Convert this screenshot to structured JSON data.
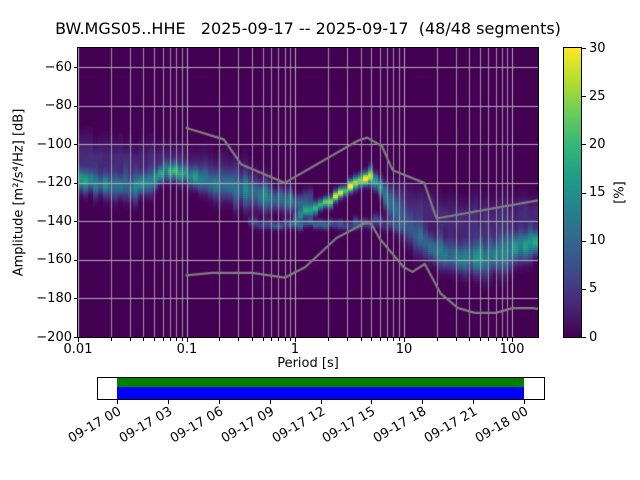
{
  "chart_data": {
    "type": "heatmap",
    "title": "BW.MGS05..HHE   2025-09-17 -- 2025-09-17  (48/48 segments)",
    "station": "BW.MGS05..HHE",
    "date_range": "2025-09-17 -- 2025-09-17",
    "segments": "48/48 segments",
    "xlabel": "Period [s]",
    "ylabel": "Amplitude [m²/s⁴/Hz] [dB]",
    "xscale": "log",
    "xlim": [
      0.01,
      172
    ],
    "ylim": [
      -200,
      -50
    ],
    "grid": true,
    "xticks": [
      {
        "value": 0.01,
        "label": "0.01"
      },
      {
        "value": 0.1,
        "label": "0.1"
      },
      {
        "value": 1,
        "label": "1"
      },
      {
        "value": 10,
        "label": "10"
      },
      {
        "value": 100,
        "label": "100"
      }
    ],
    "yticks": [
      {
        "value": -60,
        "label": "−60"
      },
      {
        "value": -80,
        "label": "−80"
      },
      {
        "value": -100,
        "label": "−100"
      },
      {
        "value": -120,
        "label": "−120"
      },
      {
        "value": -140,
        "label": "−140"
      },
      {
        "value": -160,
        "label": "−160"
      },
      {
        "value": -180,
        "label": "−180"
      },
      {
        "value": -200,
        "label": "−200"
      }
    ],
    "colorbar": {
      "label": "[%]",
      "min": 0,
      "max": 30,
      "tick_values": [
        0,
        5,
        10,
        15,
        20,
        25,
        30
      ],
      "colormap": "viridis"
    },
    "colors": {
      "background_zero": "#440154",
      "grid": "#b5b5b5",
      "noise_model_line": "#7f7f7f"
    },
    "noise_models": {
      "high_noise_model": [
        [
          0.1,
          -91.5
        ],
        [
          0.22,
          -97.4
        ],
        [
          0.32,
          -110.5
        ],
        [
          0.8,
          -120.0
        ],
        [
          3.8,
          -98.0
        ],
        [
          4.6,
          -96.5
        ],
        [
          6.3,
          -101.0
        ],
        [
          7.9,
          -113.5
        ],
        [
          15.4,
          -120.0
        ],
        [
          20.0,
          -138.5
        ],
        [
          354.8,
          -126.0
        ]
      ],
      "low_noise_model": [
        [
          0.1,
          -168.0
        ],
        [
          0.17,
          -166.7
        ],
        [
          0.4,
          -166.7
        ],
        [
          0.8,
          -169.2
        ],
        [
          1.24,
          -163.7
        ],
        [
          2.4,
          -148.6
        ],
        [
          4.3,
          -141.1
        ],
        [
          5.0,
          -141.1
        ],
        [
          6.0,
          -149.0
        ],
        [
          10.0,
          -163.8
        ],
        [
          12.0,
          -166.2
        ],
        [
          15.6,
          -162.1
        ],
        [
          21.9,
          -177.5
        ],
        [
          31.6,
          -185.0
        ],
        [
          45.0,
          -187.5
        ],
        [
          70.0,
          -187.5
        ],
        [
          101.0,
          -185.0
        ],
        [
          154.0,
          -185.0
        ],
        [
          328.0,
          -187.5
        ]
      ]
    },
    "probability_bands": [
      {
        "name": "primary-high-frequency-band",
        "points": [
          [
            0.0105,
            -118.5,
            16,
            3.2
          ],
          [
            0.014,
            -119.5,
            13,
            3.8
          ],
          [
            0.02,
            -120.5,
            12,
            4.2
          ],
          [
            0.03,
            -122,
            12,
            4.4
          ],
          [
            0.045,
            -119.5,
            13,
            3.8
          ],
          [
            0.06,
            -115.5,
            15,
            3.2
          ],
          [
            0.075,
            -113,
            17,
            2.8
          ],
          [
            0.095,
            -115,
            14,
            3.0
          ],
          [
            0.13,
            -118,
            12,
            4.0
          ],
          [
            0.2,
            -121,
            10,
            5.2
          ],
          [
            0.3,
            -123.5,
            10,
            5.4
          ],
          [
            0.45,
            -126.5,
            11,
            4.8
          ],
          [
            0.65,
            -128.5,
            12,
            4.0
          ],
          [
            0.9,
            -129.5,
            13,
            3.2
          ],
          [
            1.15,
            -129.5,
            10,
            3.0
          ],
          [
            1.4,
            -128.5,
            6,
            3.0
          ]
        ]
      },
      {
        "name": "upper-faint-halo",
        "points": [
          [
            0.0105,
            -106,
            4,
            7
          ],
          [
            0.018,
            -108,
            3.5,
            7
          ],
          [
            0.035,
            -110,
            3,
            6
          ],
          [
            0.06,
            -106,
            2.5,
            5
          ],
          [
            0.1,
            -110,
            2.5,
            6
          ],
          [
            0.18,
            -113,
            2.2,
            7
          ],
          [
            0.35,
            -118,
            2,
            7
          ],
          [
            0.6,
            -123,
            1.8,
            6
          ]
        ]
      },
      {
        "name": "microseism-ridge",
        "points": [
          [
            0.95,
            -137.5,
            7,
            2.2
          ],
          [
            1.2,
            -136,
            13,
            2.0
          ],
          [
            1.6,
            -133,
            19,
            1.9
          ],
          [
            2.1,
            -129.5,
            23,
            1.8
          ],
          [
            2.7,
            -125.5,
            27,
            1.8
          ],
          [
            3.4,
            -121.5,
            29,
            1.9
          ],
          [
            4.2,
            -117.5,
            30,
            2.0
          ],
          [
            5.0,
            -117,
            25,
            2.4
          ],
          [
            5.8,
            -120,
            16,
            3.2
          ],
          [
            6.8,
            -126,
            11,
            4.2
          ],
          [
            8.0,
            -132.5,
            9,
            5.0
          ],
          [
            10,
            -139.5,
            9,
            5.4
          ],
          [
            13,
            -146.5,
            10,
            5.4
          ],
          [
            17,
            -152.5,
            11,
            5.0
          ],
          [
            23,
            -157,
            12,
            4.6
          ],
          [
            32,
            -159.5,
            13,
            4.6
          ],
          [
            45,
            -159.5,
            13,
            5.0
          ],
          [
            65,
            -158,
            12,
            5.4
          ],
          [
            95,
            -155,
            13,
            5.4
          ],
          [
            130,
            -152.5,
            14,
            5.0
          ],
          [
            172,
            -149.5,
            15,
            4.6
          ]
        ]
      },
      {
        "name": "low-flat-band",
        "points": [
          [
            0.35,
            -141,
            4,
            1.7
          ],
          [
            0.55,
            -141.5,
            7,
            1.5
          ],
          [
            0.9,
            -141.5,
            9,
            1.4
          ],
          [
            1.6,
            -141.5,
            9,
            1.4
          ],
          [
            2.6,
            -141.5,
            8,
            1.5
          ],
          [
            4.0,
            -141,
            8,
            1.7
          ],
          [
            5.5,
            -140.5,
            7,
            1.9
          ],
          [
            7.2,
            -141,
            5,
            2.2
          ],
          [
            9.5,
            -142.5,
            3.5,
            2.6
          ]
        ]
      },
      {
        "name": "long-period-fuzz",
        "points": [
          [
            8,
            -127,
            2.5,
            5
          ],
          [
            12,
            -131,
            3,
            6
          ],
          [
            18,
            -136,
            3.5,
            7
          ],
          [
            28,
            -140,
            3.5,
            8
          ],
          [
            45,
            -141,
            3.5,
            8
          ],
          [
            70,
            -139.5,
            3.5,
            7.5
          ],
          [
            110,
            -137.5,
            3.5,
            6.5
          ],
          [
            172,
            -135,
            3.5,
            6
          ]
        ]
      }
    ],
    "timeline": {
      "tick_labels": [
        "09-17 00",
        "09-17 03",
        "09-17 06",
        "09-17 09",
        "09-17 12",
        "09-17 15",
        "09-17 18",
        "09-17 21",
        "09-18 00"
      ],
      "coverage_start_frac": 0.0446,
      "coverage_end_frac": 0.953,
      "bar_colors": {
        "top": "#008000",
        "bottom": "#0000ff"
      }
    }
  }
}
